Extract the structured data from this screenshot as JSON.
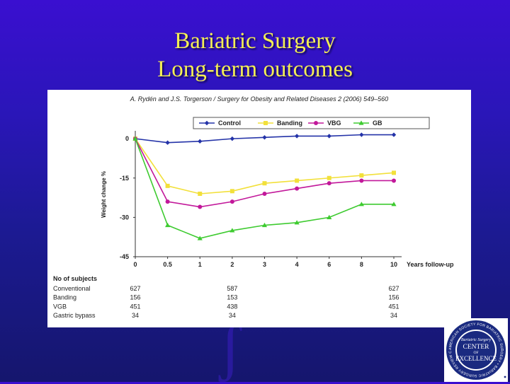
{
  "slide": {
    "title_line1": "Bariatric Surgery",
    "title_line2": "Long-term outcomes"
  },
  "figure": {
    "citation": "A. Rydén and J.S. Torgerson / Surgery for Obesity and Related Diseases 2 (2006) 549–560"
  },
  "chart_data": {
    "type": "line",
    "title": "",
    "xlabel": "Years follow-up",
    "ylabel": "Weight change %",
    "x": [
      "0",
      "0.5",
      "1",
      "2",
      "3",
      "4",
      "6",
      "8",
      "10"
    ],
    "yticks": [
      "0",
      "-15",
      "-30",
      "-45"
    ],
    "ylim": [
      -45,
      3
    ],
    "grid": false,
    "legend_position": "top",
    "series": [
      {
        "name": "Control",
        "color": "#2433a8",
        "marker": "diamond",
        "values": [
          0,
          -1.5,
          -1,
          0,
          0.5,
          1,
          1,
          1.5,
          1.5
        ]
      },
      {
        "name": "Banding",
        "color": "#f2e03a",
        "marker": "square",
        "values": [
          0,
          -18,
          -21,
          -20,
          -17,
          -16,
          -15,
          -14,
          -13
        ]
      },
      {
        "name": "VBG",
        "color": "#c2189a",
        "marker": "circle",
        "values": [
          0,
          -24,
          -26,
          -24,
          -21,
          -19,
          -17,
          -16,
          -16
        ]
      },
      {
        "name": "GB",
        "color": "#3ecb30",
        "marker": "triangle",
        "values": [
          0,
          -33,
          -38,
          -35,
          -33,
          -32,
          -30,
          -25,
          -25
        ]
      }
    ],
    "subjects_table": {
      "header": "No of subjects",
      "columns": [
        "0",
        "2",
        "10"
      ],
      "rows": [
        {
          "label": "Conventional",
          "values": [
            "627",
            "587",
            "627"
          ]
        },
        {
          "label": "Banding",
          "values": [
            "156",
            "153",
            "156"
          ]
        },
        {
          "label": "VGB",
          "values": [
            "451",
            "438",
            "451"
          ]
        },
        {
          "label": "Gastric bypass",
          "values": [
            "34",
            "34",
            "34"
          ]
        }
      ]
    }
  },
  "badge": {
    "ring_text": "AMERICAN SOCIETY FOR BARIATRIC SURGERY • BARIATRIC SURGERY REVIEW COMMITTEE",
    "line1": "Bariatric Surgery",
    "line2": "CENTER",
    "line3": "OF",
    "line4": "EXCELLENCE"
  }
}
